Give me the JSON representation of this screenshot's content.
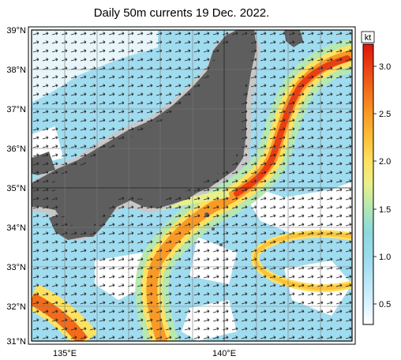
{
  "title": "Daily 50m currents 19 Dec. 2022.",
  "map": {
    "lat_labels": [
      "39°N",
      "38°N",
      "37°N",
      "36°N",
      "35°N",
      "34°N",
      "33°N",
      "32°N",
      "31°N"
    ],
    "lon_labels": [
      "135°E",
      "140°E"
    ],
    "land_color": "#5e5e5e",
    "shelf_color": "#c8c8c8"
  },
  "colorbar": {
    "unit": "kt",
    "tick_labels": [
      "0.5",
      "1.0",
      "1.5",
      "2.0",
      "2.5",
      "3.0"
    ],
    "range": [
      0.3,
      3.2
    ],
    "colors": [
      "#ffffff",
      "#d6f2ff",
      "#a0dcf0",
      "#8cd8dc",
      "#b6e8b0",
      "#e8f08a",
      "#fde262",
      "#fcc23a",
      "#f99a26",
      "#f16b1b",
      "#ea3e14",
      "#e0140c"
    ]
  }
}
